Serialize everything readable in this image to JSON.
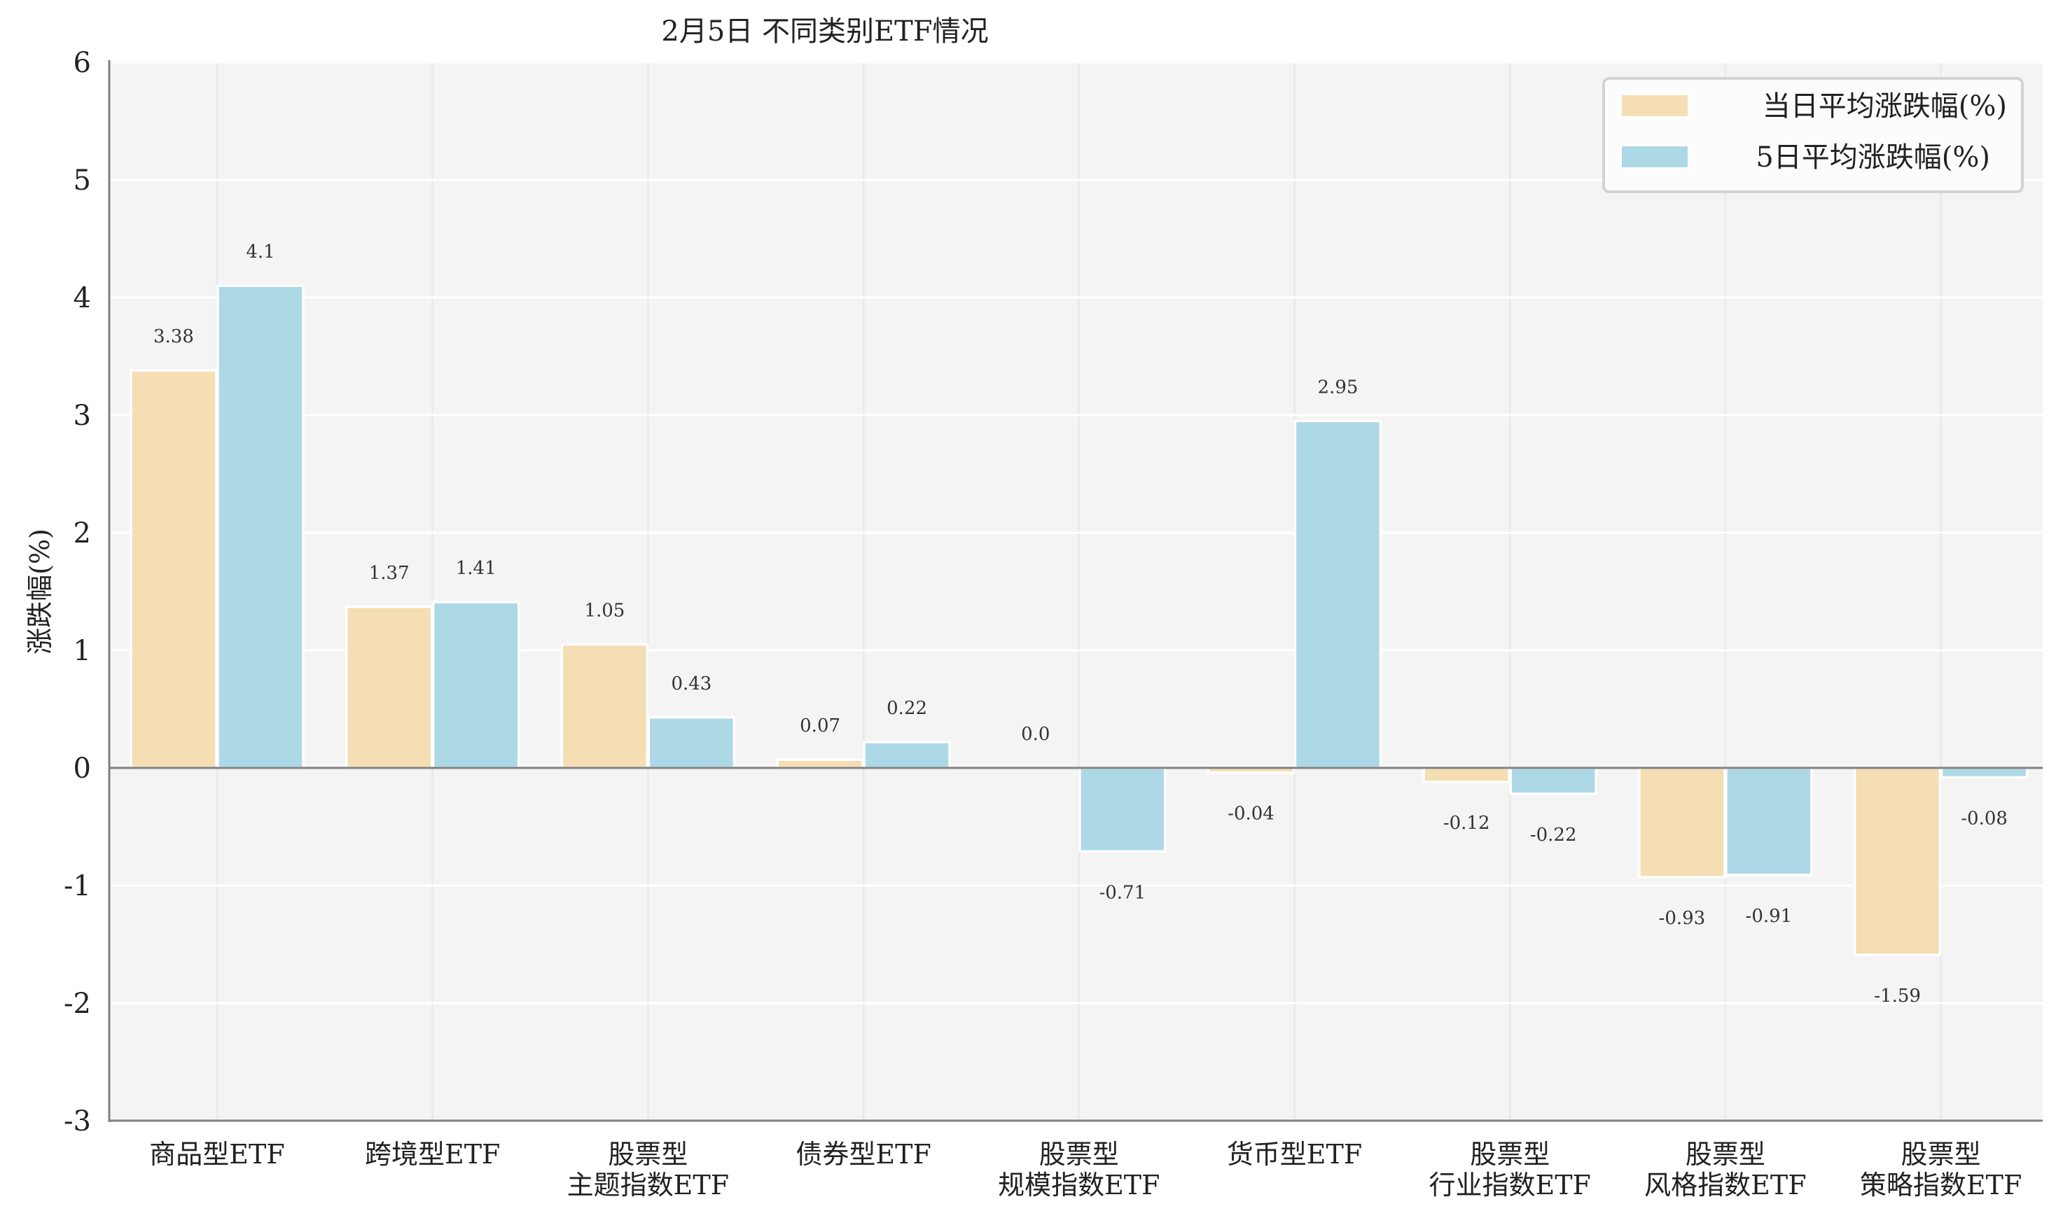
{
  "chart_data": {
    "type": "bar",
    "title": "2月5日 不同类别ETF情况",
    "xlabel": "",
    "ylabel": "涨跌幅(%)",
    "ylim": [
      -3,
      6
    ],
    "yticks": [
      6,
      5,
      4,
      3,
      2,
      1,
      0,
      -1,
      -2,
      -3
    ],
    "grid": true,
    "legend_position": "upper right",
    "categories": [
      "商品型ETF",
      "跨境型ETF",
      "股票型\n主题指数ETF",
      "债券型ETF",
      "股票型\n规模指数ETF",
      "货币型ETF",
      "股票型\n行业指数ETF",
      "股票型\n风格指数ETF",
      "股票型\n策略指数ETF"
    ],
    "series": [
      {
        "name": "当日平均涨跌幅(%)",
        "color": "#F5DEB3",
        "values": [
          3.38,
          1.37,
          1.05,
          0.07,
          0.0,
          -0.04,
          -0.12,
          -0.93,
          -1.59
        ],
        "labels": [
          "3.38",
          "1.37",
          "1.05",
          "0.07",
          "0.0",
          "-0.04",
          "-0.12",
          "-0.93",
          "-1.59"
        ]
      },
      {
        "name": "5日平均涨跌幅(%)",
        "color": "#ADD8E6",
        "values": [
          4.1,
          1.41,
          0.43,
          0.22,
          -0.71,
          2.95,
          -0.22,
          -0.91,
          -0.08
        ],
        "labels": [
          "4.1",
          "1.41",
          "0.43",
          "0.22",
          "-0.71",
          "2.95",
          "-0.22",
          "-0.91",
          "-0.08"
        ]
      }
    ]
  },
  "colors": {
    "plot_background": "#F4F4F4",
    "grid": "#FFFFFF",
    "vertical_grid": "#EAEAEA",
    "spine": "#808080",
    "zero_line": "#808080",
    "legend_border": "#D3D3D3",
    "legend_background": "#FCFCFC"
  }
}
